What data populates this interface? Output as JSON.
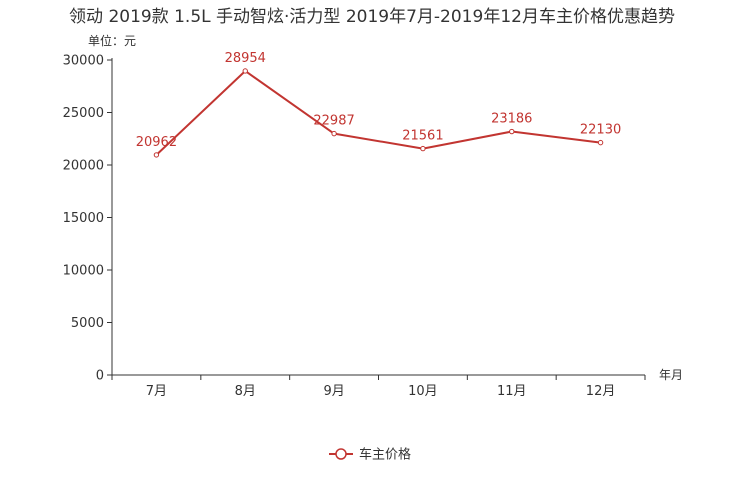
{
  "chart_data": {
    "type": "line",
    "title": "领动 2019款 1.5L 手动智炫·活力型 2019年7月-2019年12月车主价格优惠趋势",
    "unit_label": "单位：元",
    "xlabel": "年月",
    "ylabel": "",
    "categories": [
      "7月",
      "8月",
      "9月",
      "10月",
      "11月",
      "12月"
    ],
    "ylim": [
      0,
      30000
    ],
    "yticks": [
      0,
      5000,
      10000,
      15000,
      20000,
      25000,
      30000
    ],
    "series": [
      {
        "name": "车主价格",
        "values": [
          20962,
          28954,
          22987,
          21561,
          23186,
          22130
        ]
      }
    ],
    "legend_position": "bottom-center",
    "grid": false,
    "colors": {
      "series": "#c23531",
      "axis": "#333333"
    }
  }
}
